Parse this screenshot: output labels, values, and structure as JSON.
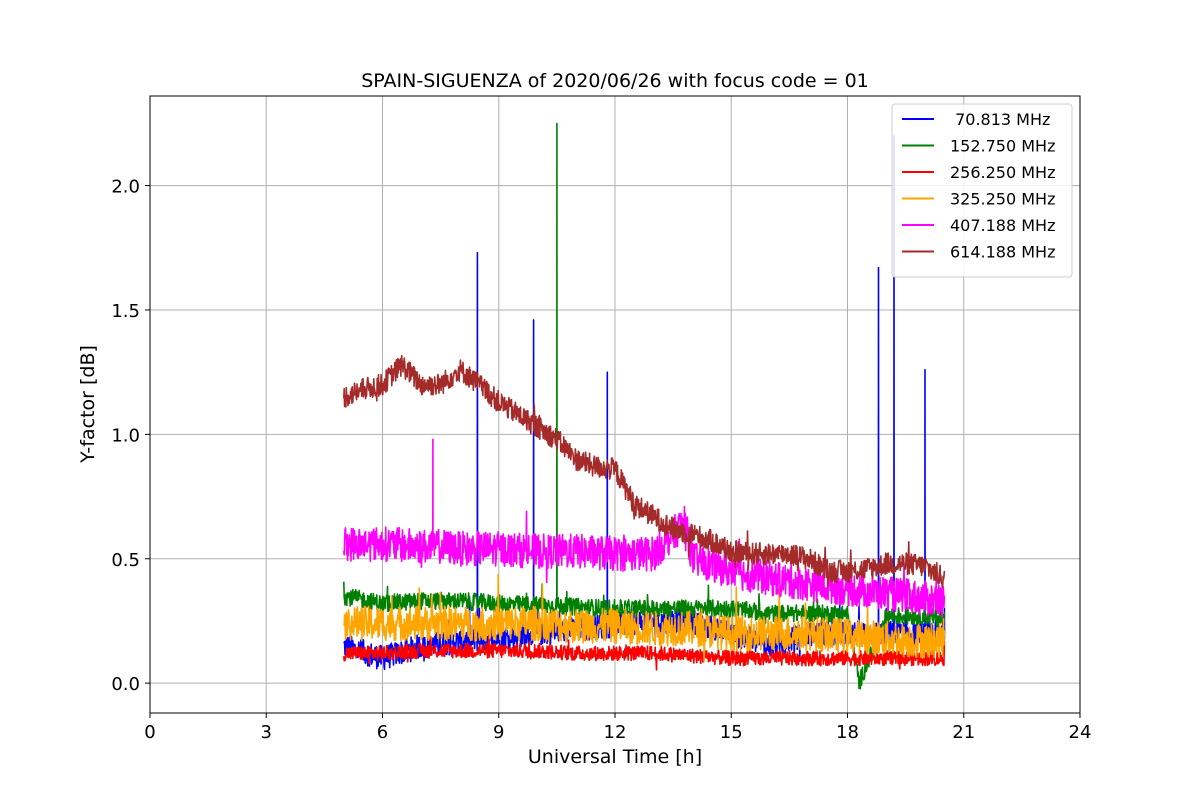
{
  "chart_data": {
    "type": "line",
    "title": "SPAIN-SIGUENZA of 2020/06/26 with focus code = 01",
    "xlabel": "Universal Time [h]",
    "ylabel": "Y-factor [dB]",
    "xlim": [
      0,
      24
    ],
    "ylim": [
      -0.12,
      2.36
    ],
    "xticks": [
      0,
      3,
      6,
      9,
      12,
      15,
      18,
      21,
      24
    ],
    "xtick_labels": [
      "0",
      "3",
      "6",
      "9",
      "12",
      "15",
      "18",
      "21",
      "24"
    ],
    "yticks": [
      0.0,
      0.5,
      1.0,
      1.5,
      2.0
    ],
    "ytick_labels": [
      "0.0",
      "0.5",
      "1.0",
      "1.5",
      "2.0"
    ],
    "grid": true,
    "legend_position": "top-right",
    "time_range": [
      5.0,
      20.5
    ],
    "series": [
      {
        "name": " 70.813 MHz",
        "color": "#0000ff",
        "x": [
          5.0,
          6.0,
          7.0,
          8.0,
          8.45,
          8.5,
          9.0,
          9.9,
          10.0,
          11.0,
          11.8,
          12.0,
          13.0,
          14.0,
          15.0,
          16.0,
          17.0,
          18.0,
          18.8,
          19.0,
          19.2,
          19.5,
          20.0,
          20.5
        ],
        "y": [
          0.15,
          0.1,
          0.15,
          0.2,
          1.73,
          0.3,
          0.25,
          1.46,
          0.3,
          0.3,
          1.25,
          0.3,
          0.25,
          0.25,
          0.2,
          0.15,
          0.2,
          0.2,
          1.67,
          0.3,
          2.2,
          0.3,
          1.26,
          0.3
        ]
      },
      {
        "name": "152.750 MHz",
        "color": "#008000",
        "x": [
          5.0,
          6.0,
          7.0,
          8.0,
          9.0,
          10.0,
          10.5,
          11.0,
          12.0,
          13.0,
          14.0,
          15.0,
          16.0,
          17.0,
          18.0,
          18.3,
          19.0,
          20.0,
          20.5
        ],
        "y": [
          0.35,
          0.32,
          0.33,
          0.33,
          0.32,
          0.32,
          2.25,
          0.32,
          0.3,
          0.3,
          0.3,
          0.3,
          0.28,
          0.28,
          0.28,
          0.0,
          0.27,
          0.27,
          0.26
        ]
      },
      {
        "name": "256.250 MHz",
        "color": "#ff0000",
        "x": [
          5.0,
          6.0,
          7.0,
          8.0,
          9.0,
          10.0,
          11.0,
          12.0,
          13.0,
          14.0,
          15.0,
          16.0,
          17.0,
          18.0,
          19.0,
          20.0,
          20.5
        ],
        "y": [
          0.12,
          0.12,
          0.13,
          0.13,
          0.13,
          0.13,
          0.12,
          0.12,
          0.12,
          0.11,
          0.1,
          0.1,
          0.1,
          0.1,
          0.1,
          0.1,
          0.1
        ]
      },
      {
        "name": "325.250 MHz",
        "color": "#ffa500",
        "x": [
          5.0,
          6.0,
          7.0,
          8.0,
          9.0,
          10.0,
          11.0,
          12.0,
          13.0,
          14.0,
          15.0,
          16.0,
          17.0,
          18.0,
          19.0,
          20.0,
          20.5
        ],
        "y": [
          0.24,
          0.24,
          0.24,
          0.24,
          0.24,
          0.24,
          0.23,
          0.23,
          0.22,
          0.22,
          0.2,
          0.2,
          0.2,
          0.19,
          0.18,
          0.17,
          0.17
        ]
      },
      {
        "name": "407.188 MHz",
        "color": "#ff00ff",
        "x": [
          5.0,
          6.0,
          7.0,
          7.3,
          7.5,
          8.0,
          9.0,
          10.0,
          11.0,
          12.0,
          13.0,
          13.8,
          14.0,
          15.0,
          16.0,
          17.0,
          18.0,
          19.0,
          20.0,
          20.5
        ],
        "y": [
          0.56,
          0.56,
          0.55,
          0.98,
          0.55,
          0.54,
          0.54,
          0.53,
          0.53,
          0.52,
          0.52,
          0.65,
          0.5,
          0.45,
          0.42,
          0.4,
          0.38,
          0.36,
          0.34,
          0.33
        ]
      },
      {
        "name": "614.188 MHz",
        "color": "#a52a2a",
        "x": [
          5.0,
          5.5,
          6.0,
          6.5,
          7.0,
          7.5,
          8.0,
          8.5,
          9.0,
          9.5,
          10.0,
          10.5,
          11.0,
          11.5,
          12.0,
          12.5,
          13.0,
          13.5,
          14.0,
          14.5,
          15.0,
          15.5,
          16.0,
          16.5,
          17.0,
          17.5,
          18.0,
          18.5,
          19.0,
          19.5,
          20.0,
          20.5
        ],
        "y": [
          1.15,
          1.18,
          1.2,
          1.28,
          1.2,
          1.2,
          1.26,
          1.2,
          1.13,
          1.08,
          1.03,
          0.98,
          0.9,
          0.87,
          0.86,
          0.72,
          0.67,
          0.62,
          0.6,
          0.57,
          0.53,
          0.52,
          0.52,
          0.52,
          0.5,
          0.45,
          0.45,
          0.46,
          0.48,
          0.48,
          0.47,
          0.42
        ]
      }
    ]
  }
}
